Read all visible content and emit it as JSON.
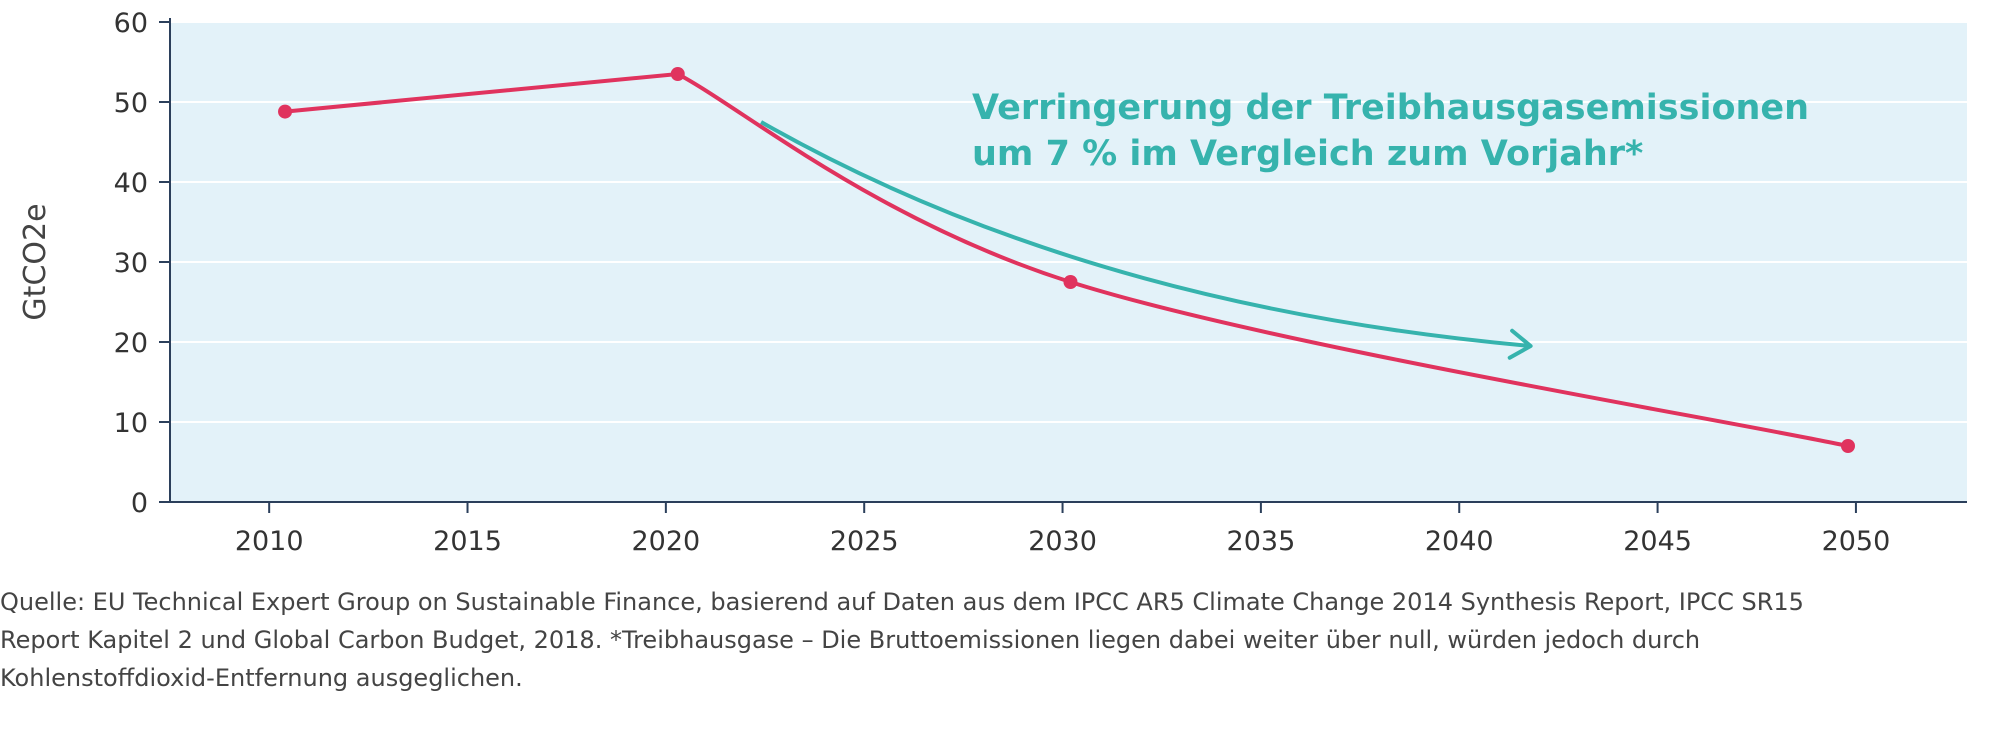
{
  "chart_data": {
    "type": "line",
    "ylabel": "GtCO2e",
    "xlabel": "",
    "ylim": [
      0,
      60
    ],
    "xlim": [
      2007.5,
      2052.8
    ],
    "x_ticks": [
      "2010",
      "2015",
      "2020",
      "2025",
      "2030",
      "2035",
      "2040",
      "2045",
      "2050"
    ],
    "y_ticks": [
      "0",
      "10",
      "20",
      "30",
      "40",
      "50",
      "60"
    ],
    "grid": true,
    "series": [
      {
        "points": [
          {
            "x": 2010.4,
            "y": 48.8
          },
          {
            "x": 2020.3,
            "y": 53.5
          },
          {
            "x": 2030.2,
            "y": 27.5
          },
          {
            "x": 2049.8,
            "y": 7.0
          }
        ]
      }
    ],
    "annotation": {
      "lines": [
        "Verringerung der Treibhausgasemissionen",
        "um 7 % im Vergleich zum Vorjahr*"
      ],
      "arrow_from": {
        "x": 2022.4,
        "y": 47.5
      },
      "arrow_to": {
        "x": 2041.8,
        "y": 19.5
      }
    }
  },
  "colors": {
    "plot_bg": "#e3f2f9",
    "series": "#e0335e",
    "annotation": "#36b3ad",
    "axis": "#2b3f5b"
  },
  "source_lines": [
    "Quelle: EU Technical Expert Group on Sustainable Finance, basierend auf Daten aus dem IPCC AR5 Climate Change 2014 Synthesis Report, IPCC SR15",
    "Report Kapitel 2 und Global Carbon Budget, 2018. *Treibhausgase – Die Bruttoemissionen liegen dabei weiter über null, würden jedoch durch",
    "Kohlenstoffdioxid-Entfernung ausgeglichen."
  ]
}
